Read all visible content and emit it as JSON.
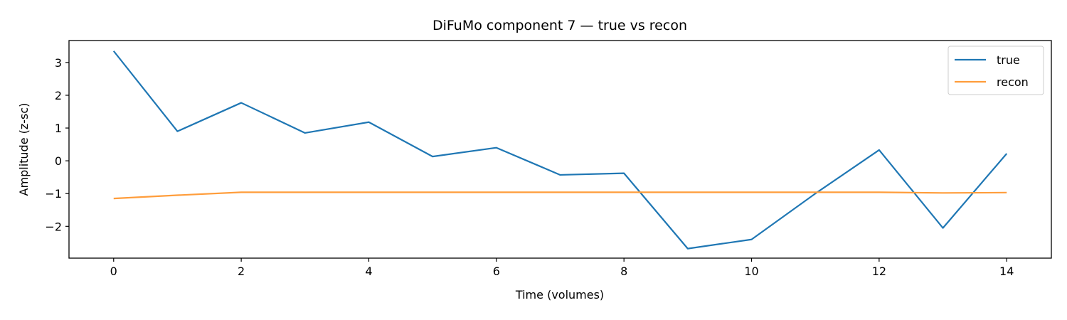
{
  "chart_data": {
    "type": "line",
    "title": "DiFuMo component 7 — true vs recon",
    "xlabel": "Time (volumes)",
    "ylabel": "Amplitude (z-sc)",
    "x": [
      0,
      1,
      2,
      3,
      4,
      5,
      6,
      7,
      8,
      9,
      10,
      11,
      12,
      13,
      14
    ],
    "xlim": [
      -0.7,
      14.7
    ],
    "ylim": [
      -2.97,
      3.67
    ],
    "xticks": [
      0,
      2,
      4,
      6,
      8,
      10,
      12,
      14
    ],
    "yticks": [
      3,
      2,
      1,
      0,
      -1,
      -2
    ],
    "ytick_labels": [
      "3",
      "2",
      "1",
      "0",
      "−1",
      "−2"
    ],
    "grid": false,
    "legend_position": "top-right",
    "series": [
      {
        "name": "true",
        "color": "#1f77b4",
        "values": [
          3.35,
          0.9,
          1.77,
          0.85,
          1.18,
          0.13,
          0.4,
          -0.43,
          -0.38,
          -2.68,
          -2.4,
          -1.0,
          0.33,
          -2.05,
          0.22
        ]
      },
      {
        "name": "recon",
        "color": "#ff9d3b",
        "values": [
          -1.15,
          -1.05,
          -0.96,
          -0.96,
          -0.96,
          -0.96,
          -0.96,
          -0.96,
          -0.96,
          -0.96,
          -0.96,
          -0.96,
          -0.96,
          -0.98,
          -0.97
        ]
      }
    ]
  }
}
